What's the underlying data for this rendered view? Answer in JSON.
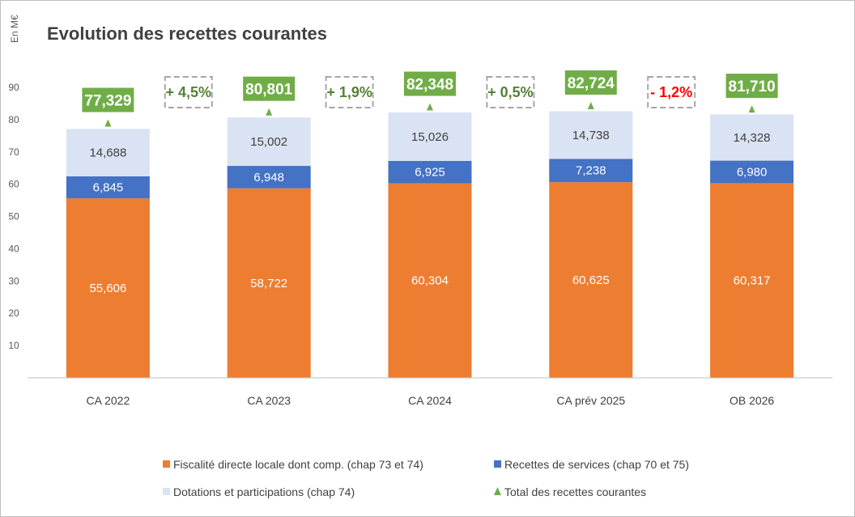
{
  "chart_data": {
    "type": "bar",
    "stacked": true,
    "title": "Evolution des recettes courantes",
    "unit_label": "En M€",
    "ylim": [
      0,
      90
    ],
    "yticks": [
      10,
      20,
      30,
      40,
      50,
      60,
      70,
      80,
      90
    ],
    "grid": false,
    "legend_position": "bottom",
    "categories": [
      "CA 2022",
      "CA 2023",
      "CA 2024",
      "CA prév 2025",
      "OB 2026"
    ],
    "series": [
      {
        "name": "Fiscalité directe locale dont comp. (chap 73 et 74)",
        "color": "#ed7d31",
        "values": [
          55.606,
          58.722,
          60.304,
          60.625,
          60.317
        ],
        "labels": [
          "55,606",
          "58,722",
          "60,304",
          "60,625",
          "60,317"
        ]
      },
      {
        "name": "Recettes de services (chap 70 et 75)",
        "color": "#4472c4",
        "values": [
          6.845,
          6.948,
          6.925,
          7.238,
          6.98
        ],
        "labels": [
          "6,845",
          "6,948",
          "6,925",
          "7,238",
          "6,980"
        ]
      },
      {
        "name": "Dotations et participations (chap 74)",
        "color": "#dae3f3",
        "values": [
          14.688,
          15.002,
          15.026,
          14.738,
          14.328
        ],
        "labels": [
          "14,688",
          "15,002",
          "15,026",
          "14,738",
          "14,328"
        ]
      }
    ],
    "totals": {
      "name": "Total des recettes courantes",
      "color": "#70ad47",
      "values": [
        77.329,
        80.801,
        82.348,
        82.724,
        81.71
      ],
      "labels": [
        "77,329",
        "80,801",
        "82,348",
        "82,724",
        "81,710"
      ]
    },
    "growth": [
      {
        "label": "+ 4,5%",
        "color": "#548235"
      },
      {
        "label": "+ 1,9%",
        "color": "#548235"
      },
      {
        "label": "+ 0,5%",
        "color": "#548235"
      },
      {
        "label": "- 1,2%",
        "color": "#ff0000"
      }
    ]
  }
}
